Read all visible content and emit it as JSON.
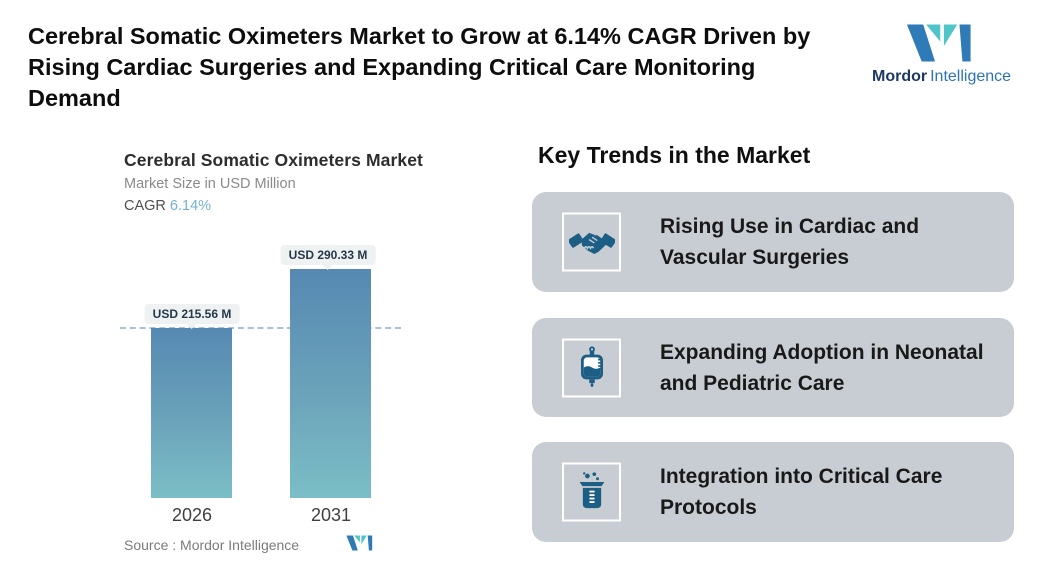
{
  "header": {
    "title_lines": [
      "Cerebral Somatic Oximeters Market to Grow at 6.14% CAGR Driven by",
      "Rising Cardiac Surgeries and Expanding Critical Care Monitoring",
      "Demand"
    ],
    "logo": {
      "brand_bold": "Mordor",
      "brand_light": "Intelligence"
    }
  },
  "chart": {
    "title": "Cerebral Somatic Oximeters Market",
    "subtitle": "Market Size in USD Million",
    "cagr_label": "CAGR",
    "cagr_value": "6.14%",
    "bars": [
      {
        "year": "2026",
        "label": "USD 215.56 M",
        "value": 215.56
      },
      {
        "year": "2031",
        "label": "USD 290.33 M",
        "value": 290.33
      }
    ],
    "source_label": "Source :  Mordor Intelligence"
  },
  "chart_data": {
    "type": "bar",
    "categories": [
      "2026",
      "2031"
    ],
    "values": [
      215.56,
      290.33
    ],
    "title": "Cerebral Somatic Oximeters Market",
    "xlabel": "",
    "ylabel": "Market Size in USD Million",
    "data_labels": [
      "USD 215.56 M",
      "USD 290.33 M"
    ],
    "cagr": "6.14%",
    "reference_line": 215.56,
    "legend": "off",
    "grid": "off"
  },
  "trends": {
    "heading": "Key Trends in the Market",
    "items": [
      {
        "icon": "handshake-icon",
        "lines": [
          "Rising Use in Cardiac and",
          "Vascular Surgeries"
        ]
      },
      {
        "icon": "iv-bag-icon",
        "lines": [
          "Expanding Adoption in Neonatal",
          "and Pediatric Care"
        ]
      },
      {
        "icon": "beaker-icon",
        "lines": [
          "Integration into Critical Care",
          "Protocols"
        ]
      }
    ]
  },
  "colors": {
    "bar_gradient_top": "#5689b2",
    "bar_gradient_bottom": "#7bbec6",
    "dashed_line": "#a3c3d9",
    "card_background": "#c8cdd4",
    "icon_blue": "#1d5e84",
    "logo_blue": "#2e7bb8",
    "logo_teal": "#4fc4c9",
    "cagr_accent": "#74b2cf",
    "pill_background": "#eef2f2"
  }
}
